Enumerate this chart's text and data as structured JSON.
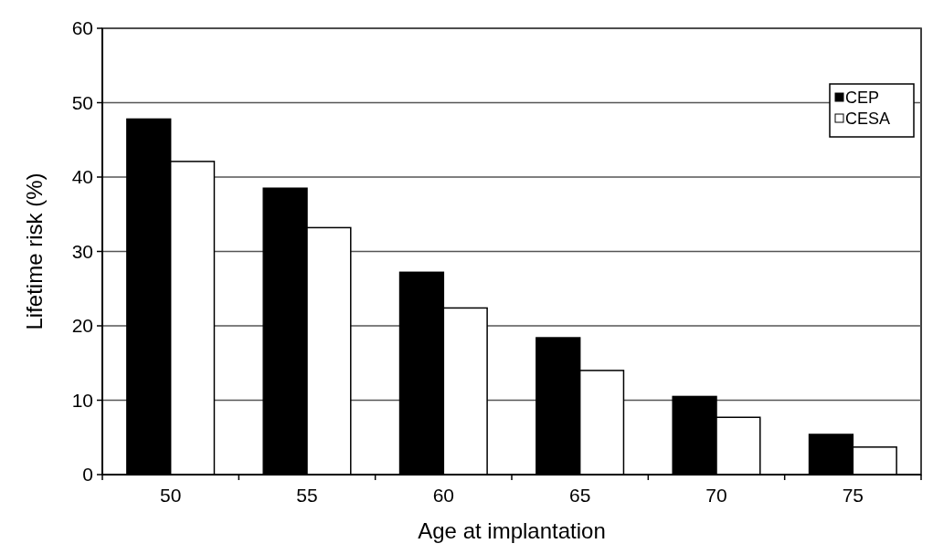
{
  "chart_data": {
    "type": "bar",
    "xlabel": "Age at implantation",
    "ylabel": "Lifetime risk (%)",
    "categories": [
      "50",
      "55",
      "60",
      "65",
      "70",
      "75"
    ],
    "series": [
      {
        "name": "CEP",
        "color": "#000000",
        "values": [
          47.8,
          38.5,
          27.2,
          18.4,
          10.5,
          5.4
        ]
      },
      {
        "name": "CESA",
        "color": "#ffffff",
        "values": [
          42.1,
          33.2,
          22.4,
          14.0,
          7.7,
          3.7
        ]
      }
    ],
    "ylim": [
      0,
      60
    ],
    "yticks": [
      0,
      10,
      20,
      30,
      40,
      50,
      60
    ],
    "grid": "y",
    "legend": "top right"
  }
}
